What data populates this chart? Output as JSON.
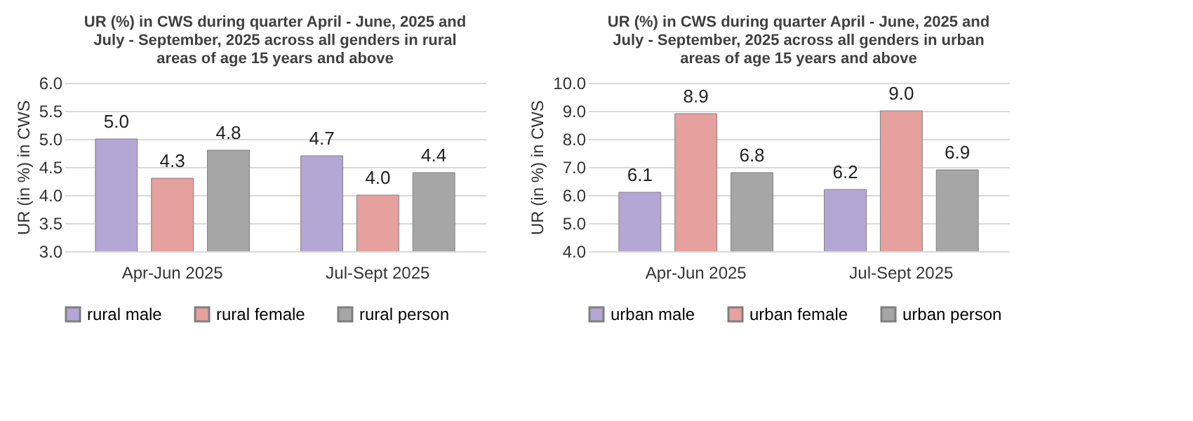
{
  "chart_data": [
    {
      "type": "bar",
      "title": "UR (%) in CWS during quarter April - June, 2025 and July - September, 2025 across all genders in rural areas of age 15 years and above",
      "ylabel": "UR (in %) in CWS",
      "categories": [
        "Apr-Jun 2025",
        "Jul-Sept 2025"
      ],
      "series": [
        {
          "name": "rural male",
          "color": "#b4a7d6",
          "values": [
            5.0,
            4.7
          ],
          "value_labels": [
            "5.0",
            "4.7"
          ]
        },
        {
          "name": "rural female",
          "color": "#e6a09e",
          "values": [
            4.3,
            4.0
          ],
          "value_labels": [
            "4.3",
            "4.0"
          ]
        },
        {
          "name": "rural person",
          "color": "#a6a6a6",
          "values": [
            4.8,
            4.4
          ],
          "value_labels": [
            "4.8",
            "4.4"
          ]
        }
      ],
      "ylim": [
        3.0,
        6.0
      ],
      "yticks": [
        {
          "value": 3,
          "label": "3.0"
        },
        {
          "value": 3.5,
          "label": "3.5"
        },
        {
          "value": 4,
          "label": "4.0"
        },
        {
          "value": 4.5,
          "label": "4.5"
        },
        {
          "value": 5,
          "label": "5.0"
        },
        {
          "value": 5.5,
          "label": "5.5"
        },
        {
          "value": 6,
          "label": "6.0"
        }
      ],
      "grid": "y",
      "legend": "bottom"
    },
    {
      "type": "bar",
      "title": "UR (%) in CWS during quarter April - June, 2025 and July - September, 2025 across all genders in urban areas of age 15 years and above",
      "ylabel": "UR (in %) in CWS",
      "categories": [
        "Apr-Jun 2025",
        "Jul-Sept 2025"
      ],
      "series": [
        {
          "name": "urban male",
          "color": "#b4a7d6",
          "values": [
            6.1,
            6.2
          ],
          "value_labels": [
            "6.1",
            "6.2"
          ]
        },
        {
          "name": "urban female",
          "color": "#e6a09e",
          "values": [
            8.9,
            9.0
          ],
          "value_labels": [
            "8.9",
            "9.0"
          ]
        },
        {
          "name": "urban person",
          "color": "#a6a6a6",
          "values": [
            6.8,
            6.9
          ],
          "value_labels": [
            "6.8",
            "6.9"
          ]
        }
      ],
      "ylim": [
        4.0,
        10.0
      ],
      "yticks": [
        {
          "value": 4,
          "label": "4.0"
        },
        {
          "value": 5,
          "label": "5.0"
        },
        {
          "value": 6,
          "label": "6.0"
        },
        {
          "value": 7,
          "label": "7.0"
        },
        {
          "value": 8,
          "label": "8.0"
        },
        {
          "value": 9,
          "label": "9.0"
        },
        {
          "value": 10,
          "label": "10.0"
        }
      ],
      "grid": "y",
      "legend": "bottom"
    }
  ]
}
